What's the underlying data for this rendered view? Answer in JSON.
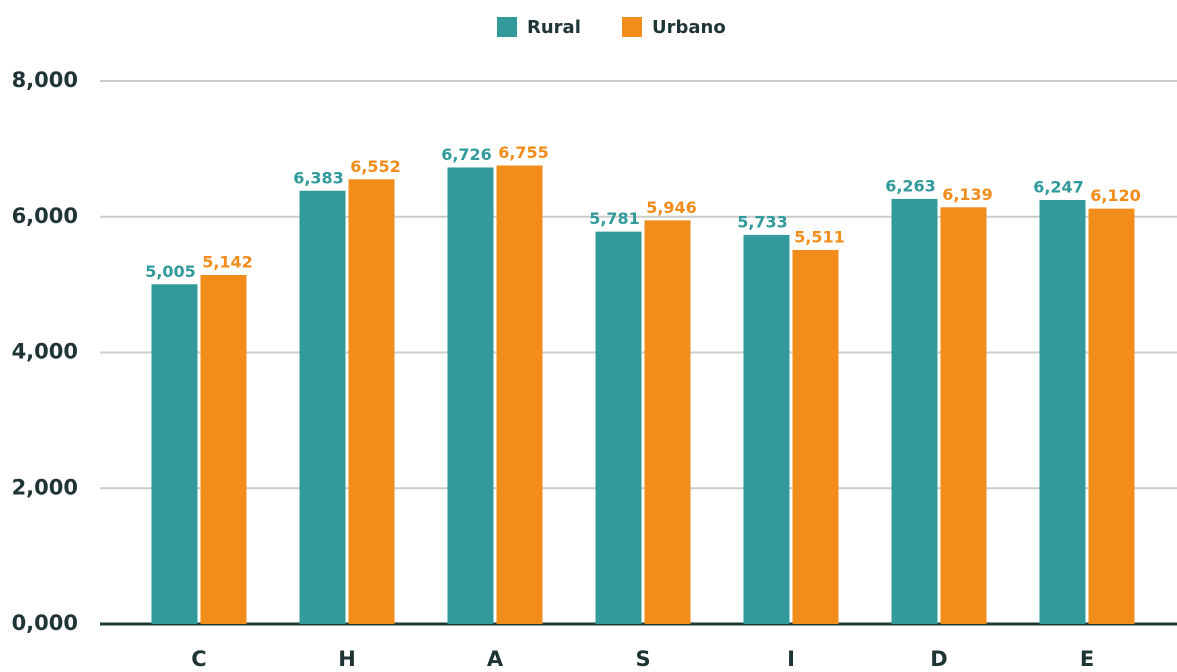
{
  "chart_data": {
    "type": "bar",
    "categories": [
      "C",
      "H",
      "A",
      "S",
      "I",
      "D",
      "E"
    ],
    "series": [
      {
        "name": "Rural",
        "color": "#339a9b",
        "values": [
          5005,
          6383,
          6726,
          5781,
          5733,
          6263,
          6247
        ],
        "value_labels": [
          "5,005",
          "6,383",
          "6,726",
          "5,781",
          "5,733",
          "6,263",
          "6,247"
        ]
      },
      {
        "name": "Urbano",
        "color": "#f28c1a",
        "values": [
          5142,
          6552,
          6755,
          5946,
          5511,
          6139,
          6120
        ],
        "value_labels": [
          "5,142",
          "6,552",
          "6,755",
          "5,946",
          "5,511",
          "6,139",
          "6,120"
        ]
      }
    ],
    "ylim": [
      0,
      8000
    ],
    "yticks": [
      {
        "value": 0,
        "label": "0,000"
      },
      {
        "value": 2000,
        "label": "2,000"
      },
      {
        "value": 4000,
        "label": "4,000"
      },
      {
        "value": 6000,
        "label": "6,000"
      },
      {
        "value": 8000,
        "label": "8,000"
      }
    ],
    "grid": true,
    "legend": "top"
  }
}
